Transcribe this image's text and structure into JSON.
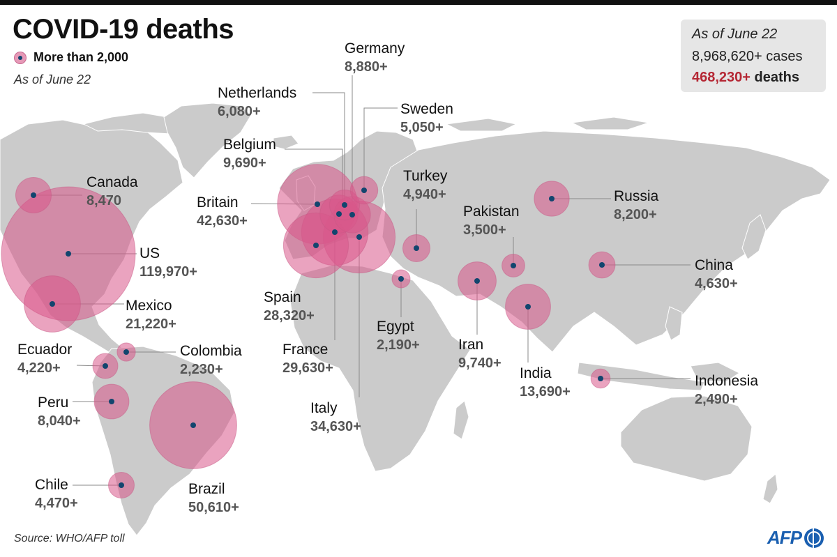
{
  "title": "COVID-19 deaths",
  "legend": {
    "label": "More than 2,000"
  },
  "as_of": "As of June 22",
  "summary": {
    "date": "As of June 22",
    "cases": "8,968,620+ cases",
    "deaths_value": "468,230+",
    "deaths_label": "deaths"
  },
  "source": "Source: WHO/AFP toll",
  "logo": "AFP",
  "colors": {
    "bubble_fill": "#d8578a",
    "bubble_stroke": "#c85a86",
    "dot": "#12456e",
    "land": "#cbcbcb",
    "deaths_accent": "#b52734",
    "logo_blue": "#1a5fb0"
  },
  "countries": [
    {
      "name": "US",
      "deaths": "119,970+"
    },
    {
      "name": "Brazil",
      "deaths": "50,610+"
    },
    {
      "name": "Britain",
      "deaths": "42,630+"
    },
    {
      "name": "Italy",
      "deaths": "34,630+"
    },
    {
      "name": "France",
      "deaths": "29,630+"
    },
    {
      "name": "Spain",
      "deaths": "28,320+"
    },
    {
      "name": "Mexico",
      "deaths": "21,220+"
    },
    {
      "name": "India",
      "deaths": "13,690+"
    },
    {
      "name": "Iran",
      "deaths": "9,740+"
    },
    {
      "name": "Belgium",
      "deaths": "9,690+"
    },
    {
      "name": "Germany",
      "deaths": "8,880+"
    },
    {
      "name": "Canada",
      "deaths": "8,470"
    },
    {
      "name": "Russia",
      "deaths": "8,200+"
    },
    {
      "name": "Peru",
      "deaths": "8,040+"
    },
    {
      "name": "Netherlands",
      "deaths": "6,080+"
    },
    {
      "name": "Sweden",
      "deaths": "5,050+"
    },
    {
      "name": "Turkey",
      "deaths": "4,940+"
    },
    {
      "name": "China",
      "deaths": "4,630+"
    },
    {
      "name": "Chile",
      "deaths": "4,470+"
    },
    {
      "name": "Ecuador",
      "deaths": "4,220+"
    },
    {
      "name": "Pakistan",
      "deaths": "3,500+"
    },
    {
      "name": "Indonesia",
      "deaths": "2,490+"
    },
    {
      "name": "Colombia",
      "deaths": "2,230+"
    },
    {
      "name": "Egypt",
      "deaths": "2,190+"
    }
  ]
}
